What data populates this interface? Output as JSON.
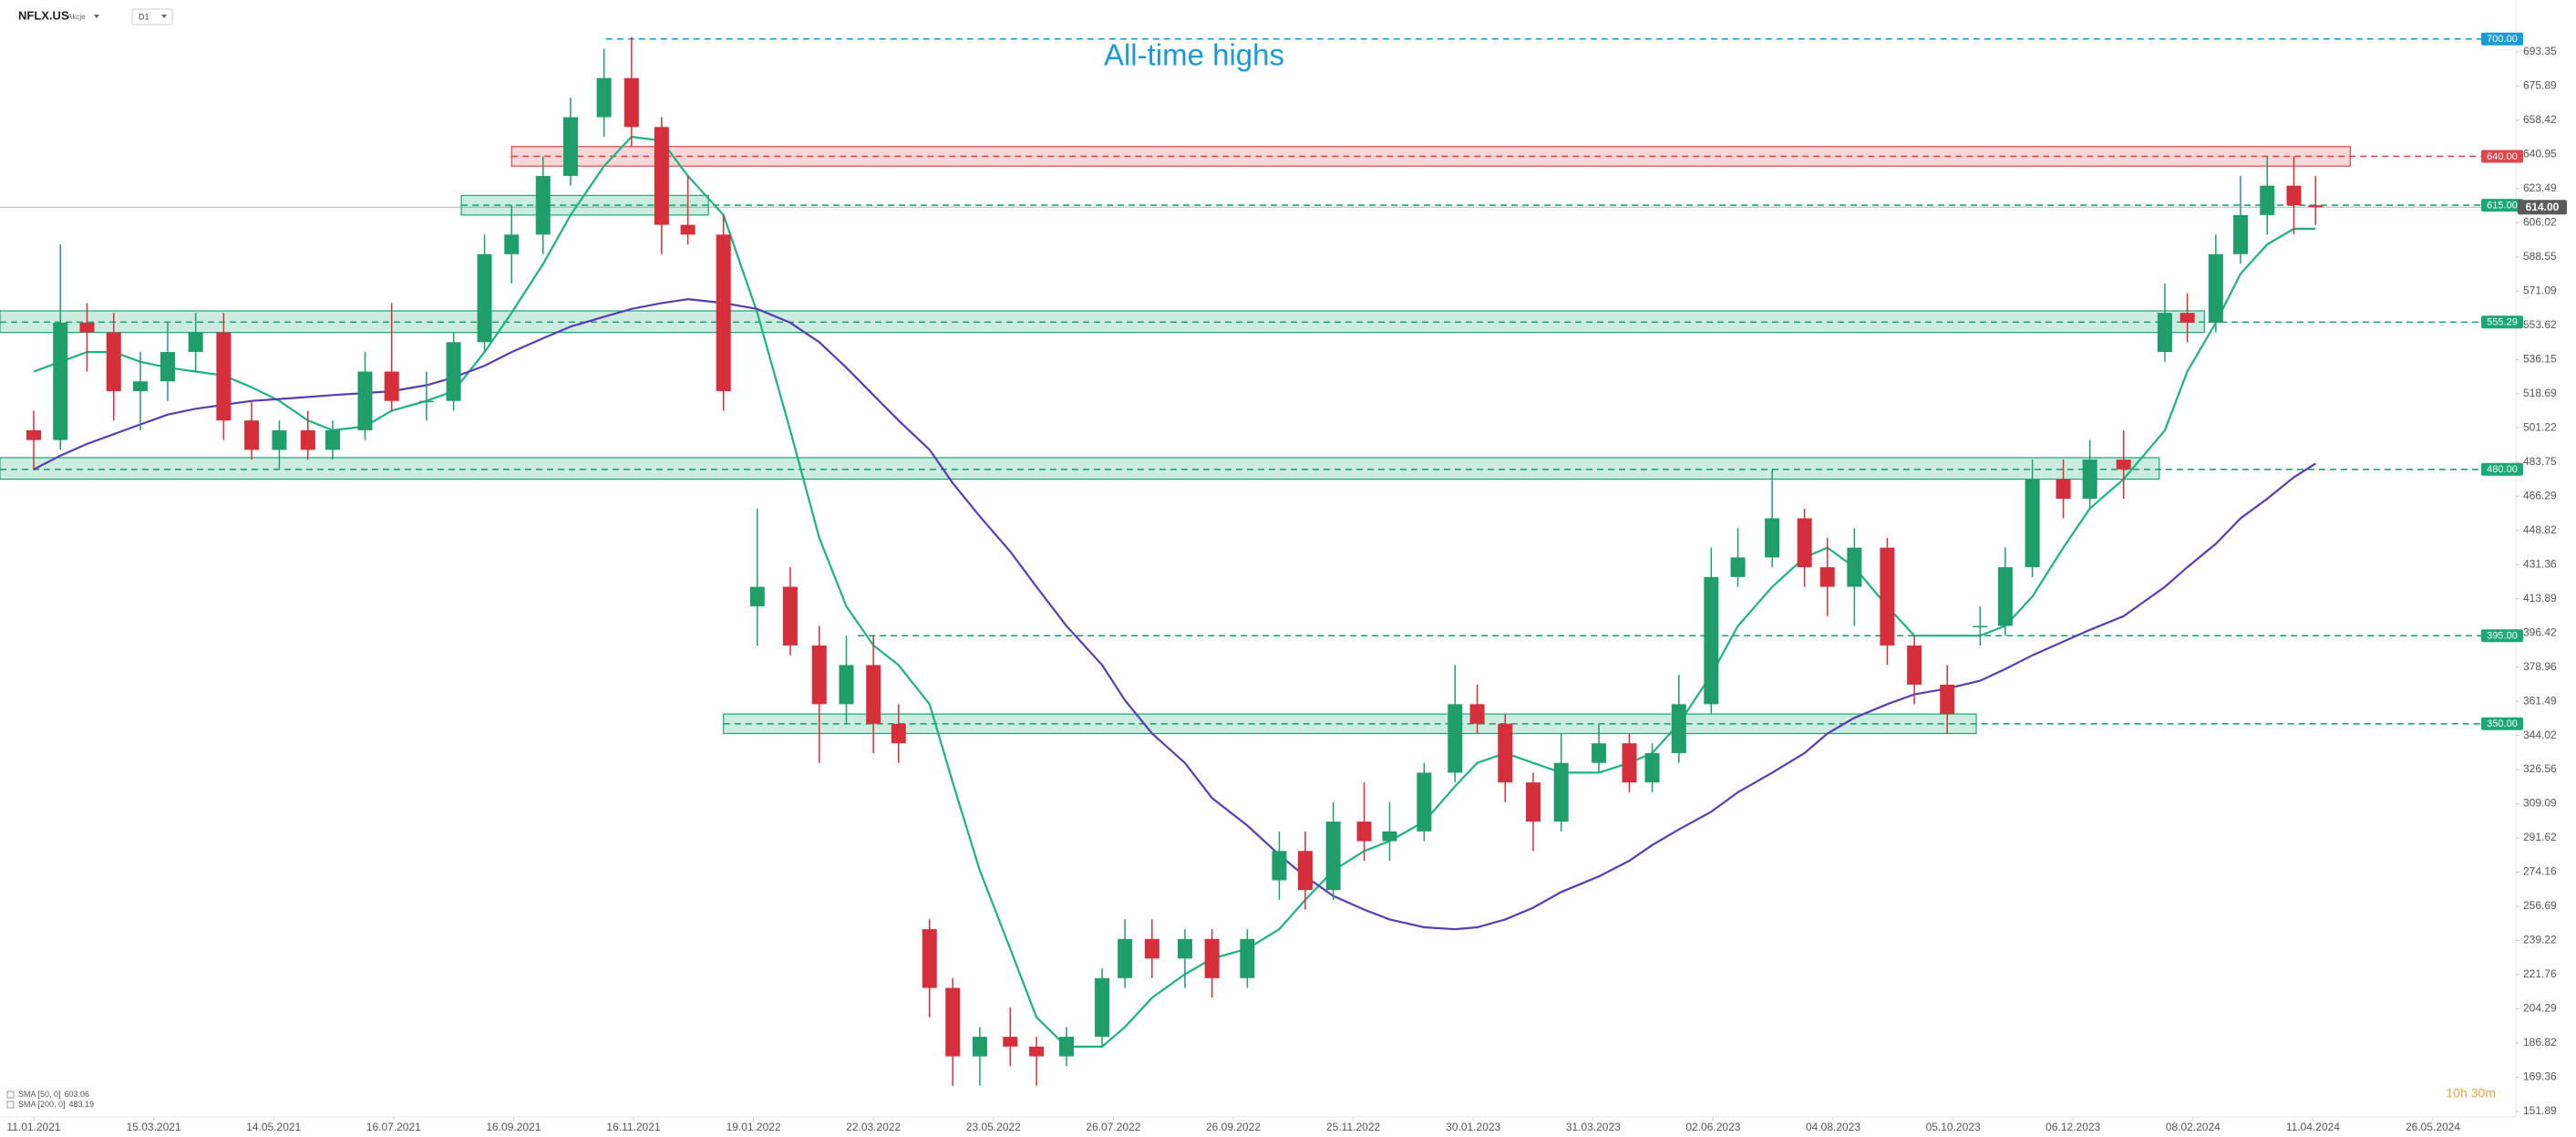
{
  "chart_data": {
    "type": "candlestick",
    "symbol": "NFLX.US",
    "asset_class": "Akcje",
    "interval": "D1",
    "annotation": "All-time highs",
    "countdown": "10h 30m",
    "x": [
      "2021-01-11",
      "2021-01-25",
      "2021-02-08",
      "2021-02-22",
      "2021-03-08",
      "2021-03-22",
      "2021-04-05",
      "2021-04-19",
      "2021-05-03",
      "2021-05-17",
      "2021-06-01",
      "2021-06-14",
      "2021-07-01",
      "2021-07-15",
      "2021-08-02",
      "2021-08-16",
      "2021-09-01",
      "2021-09-15",
      "2021-10-01",
      "2021-10-15",
      "2021-11-01",
      "2021-11-15",
      "2021-12-01",
      "2021-12-15",
      "2022-01-03",
      "2022-01-21",
      "2022-02-07",
      "2022-02-22",
      "2022-03-08",
      "2022-03-22",
      "2022-04-04",
      "2022-04-20",
      "2022-05-02",
      "2022-05-16",
      "2022-06-01",
      "2022-06-15",
      "2022-07-01",
      "2022-07-20",
      "2022-08-01",
      "2022-08-15",
      "2022-09-01",
      "2022-09-15",
      "2022-10-03",
      "2022-10-19",
      "2022-11-01",
      "2022-11-15",
      "2022-12-01",
      "2022-12-15",
      "2023-01-03",
      "2023-01-20",
      "2023-02-01",
      "2023-02-15",
      "2023-03-01",
      "2023-03-15",
      "2023-04-03",
      "2023-04-19",
      "2023-05-01",
      "2023-05-15",
      "2023-06-01",
      "2023-06-15",
      "2023-07-03",
      "2023-07-20",
      "2023-08-01",
      "2023-08-15",
      "2023-09-01",
      "2023-09-15",
      "2023-10-02",
      "2023-10-19",
      "2023-11-01",
      "2023-11-15",
      "2023-12-01",
      "2023-12-15",
      "2024-01-02",
      "2024-01-24",
      "2024-02-05",
      "2024-02-20",
      "2024-03-04",
      "2024-03-18",
      "2024-04-01",
      "2024-04-12"
    ],
    "open": [
      500,
      495,
      555,
      550,
      520,
      525,
      540,
      550,
      505,
      490,
      500,
      490,
      500,
      530,
      515,
      515,
      545,
      590,
      600,
      630,
      660,
      680,
      655,
      605,
      600,
      410,
      420,
      390,
      360,
      380,
      350,
      245,
      215,
      180,
      190,
      185,
      180,
      190,
      220,
      240,
      230,
      240,
      220,
      270,
      285,
      265,
      300,
      290,
      295,
      325,
      360,
      350,
      320,
      300,
      330,
      340,
      320,
      335,
      360,
      425,
      435,
      455,
      430,
      420,
      440,
      390,
      370,
      400,
      400,
      430,
      475,
      465,
      485,
      540,
      560,
      555,
      590,
      610,
      625,
      615
    ],
    "high": [
      510,
      595,
      565,
      560,
      540,
      555,
      560,
      560,
      515,
      505,
      510,
      505,
      540,
      565,
      530,
      550,
      600,
      615,
      640,
      670,
      695,
      701,
      660,
      630,
      610,
      460,
      430,
      400,
      395,
      395,
      360,
      250,
      220,
      195,
      205,
      190,
      195,
      225,
      250,
      250,
      245,
      245,
      245,
      295,
      295,
      310,
      320,
      310,
      330,
      380,
      370,
      355,
      325,
      345,
      350,
      345,
      340,
      375,
      440,
      450,
      480,
      460,
      445,
      450,
      445,
      395,
      380,
      410,
      440,
      485,
      485,
      495,
      500,
      575,
      570,
      600,
      630,
      640,
      640,
      630
    ],
    "low": [
      480,
      490,
      530,
      505,
      500,
      515,
      530,
      495,
      485,
      480,
      485,
      485,
      495,
      510,
      505,
      510,
      540,
      575,
      590,
      625,
      650,
      645,
      590,
      595,
      510,
      390,
      385,
      330,
      350,
      335,
      330,
      200,
      165,
      165,
      175,
      165,
      175,
      185,
      215,
      220,
      215,
      210,
      215,
      260,
      255,
      260,
      280,
      280,
      290,
      320,
      345,
      310,
      285,
      295,
      325,
      315,
      315,
      330,
      355,
      420,
      430,
      420,
      405,
      400,
      380,
      360,
      345,
      390,
      395,
      425,
      455,
      460,
      465,
      535,
      545,
      550,
      585,
      600,
      600,
      605
    ],
    "close": [
      495,
      555,
      550,
      520,
      525,
      540,
      550,
      505,
      490,
      500,
      490,
      500,
      530,
      515,
      515,
      545,
      590,
      600,
      630,
      660,
      680,
      655,
      605,
      600,
      520,
      420,
      390,
      360,
      380,
      350,
      340,
      215,
      180,
      190,
      185,
      180,
      190,
      220,
      240,
      230,
      240,
      220,
      240,
      285,
      265,
      300,
      290,
      295,
      325,
      360,
      350,
      320,
      300,
      330,
      340,
      320,
      335,
      360,
      425,
      435,
      455,
      430,
      420,
      440,
      390,
      370,
      355,
      400,
      430,
      475,
      465,
      485,
      480,
      560,
      555,
      590,
      610,
      625,
      615,
      614
    ],
    "up_color": "#1f9e6b",
    "down_color": "#d62f3c",
    "series": [
      {
        "name": "SMA [50, 0]",
        "legend_value": 603.06,
        "color": "#1db380",
        "values": [
          530,
          535,
          540,
          540,
          535,
          532,
          530,
          528,
          522,
          515,
          505,
          500,
          502,
          510,
          515,
          520,
          540,
          560,
          585,
          610,
          635,
          650,
          648,
          630,
          610,
          560,
          500,
          445,
          410,
          390,
          380,
          360,
          320,
          275,
          235,
          200,
          185,
          185,
          195,
          210,
          222,
          230,
          235,
          245,
          260,
          275,
          285,
          290,
          300,
          318,
          330,
          335,
          330,
          325,
          325,
          330,
          335,
          350,
          375,
          400,
          420,
          435,
          440,
          430,
          410,
          395,
          395,
          395,
          400,
          415,
          440,
          460,
          475,
          500,
          530,
          555,
          580,
          595,
          603,
          603
        ]
      },
      {
        "name": "SMA [200, 0]",
        "legend_value": 483.19,
        "color": "#5a3db5",
        "values": [
          480,
          487,
          493,
          498,
          503,
          508,
          511,
          513,
          515,
          516,
          517,
          518,
          519,
          520,
          523,
          527,
          533,
          540,
          547,
          553,
          558,
          562,
          565,
          567,
          565,
          562,
          555,
          545,
          532,
          518,
          505,
          490,
          473,
          456,
          438,
          420,
          400,
          380,
          362,
          345,
          330,
          312,
          298,
          283,
          272,
          262,
          255,
          250,
          246,
          245,
          246,
          250,
          256,
          264,
          272,
          280,
          288,
          296,
          305,
          315,
          325,
          335,
          345,
          353,
          360,
          365,
          368,
          372,
          378,
          385,
          392,
          398,
          405,
          420,
          430,
          442,
          455,
          465,
          476,
          483
        ]
      }
    ],
    "levels": [
      {
        "value": 700,
        "label": "700.00",
        "color": "#1a9bd7",
        "from": "2021-11-02"
      },
      {
        "value": 640,
        "label": "640.00",
        "color": "#e0474c",
        "from": "2021-09-15",
        "zone": [
          635,
          645
        ],
        "zone_to": "2024-04-25"
      },
      {
        "value": 615,
        "label": "615.00",
        "color": "#19a974",
        "from": "2021-08-20",
        "zone": [
          610,
          620
        ],
        "zone_to": "2021-12-26"
      },
      {
        "value": 555.29,
        "color": "#19a974",
        "from": "2020-12-24",
        "zone": [
          550,
          561
        ],
        "zone_to": "2024-02-14"
      },
      {
        "value": 480,
        "label": "480.00",
        "color": "#19a974",
        "from": "2020-12-24",
        "zone": [
          475,
          486
        ],
        "zone_to": "2024-01-21"
      },
      {
        "value": 395,
        "label": "395.00",
        "color": "#19a974",
        "from": "2022-03-14"
      },
      {
        "value": 350,
        "label": "350.00",
        "color": "#19a974",
        "from": "2022-01-03",
        "zone": [
          345,
          355
        ],
        "zone_to": "2023-10-17"
      }
    ],
    "current_price": {
      "value": 614,
      "label": "614.00",
      "color": "#5b5b5b"
    },
    "ylim": [
      149.05,
      719.9
    ],
    "yticks": [
      693.35,
      675.89,
      658.42,
      640.95,
      623.49,
      606.02,
      588.55,
      571.09,
      553.62,
      536.15,
      518.69,
      501.22,
      483.75,
      466.29,
      448.82,
      431.36,
      413.89,
      396.42,
      378.96,
      361.49,
      344.02,
      326.56,
      309.09,
      291.62,
      274.16,
      256.69,
      239.22,
      221.76,
      204.29,
      186.82,
      169.36,
      151.89
    ],
    "xticks": [
      {
        "value": "2021-01-11",
        "label": "11.01.2021"
      },
      {
        "value": "2021-03-15",
        "label": "15.03.2021"
      },
      {
        "value": "2021-05-14",
        "label": "14.05.2021"
      },
      {
        "value": "2021-07-16",
        "label": "16.07.2021"
      },
      {
        "value": "2021-09-16",
        "label": "16.09.2021"
      },
      {
        "value": "2021-11-16",
        "label": "16.11.2021"
      },
      {
        "value": "2022-01-19",
        "label": "19.01.2022"
      },
      {
        "value": "2022-03-22",
        "label": "22.03.2022"
      },
      {
        "value": "2022-05-23",
        "label": "23.05.2022"
      },
      {
        "value": "2022-07-26",
        "label": "26.07.2022"
      },
      {
        "value": "2022-09-26",
        "label": "26.09.2022"
      },
      {
        "value": "2022-11-25",
        "label": "25.11.2022"
      },
      {
        "value": "2023-01-30",
        "label": "30.01.2023"
      },
      {
        "value": "2023-03-31",
        "label": "31.03.2023"
      },
      {
        "value": "2023-06-02",
        "label": "02.06.2023"
      },
      {
        "value": "2023-08-04",
        "label": "04.08.2023"
      },
      {
        "value": "2023-10-05",
        "label": "05.10.2023"
      },
      {
        "value": "2023-12-06",
        "label": "06.12.2023"
      },
      {
        "value": "2024-02-08",
        "label": "08.02.2024"
      },
      {
        "value": "2024-04-11",
        "label": "11.04.2024"
      },
      {
        "value": "2024-05-26",
        "label": "26.05.2024"
      }
    ]
  }
}
